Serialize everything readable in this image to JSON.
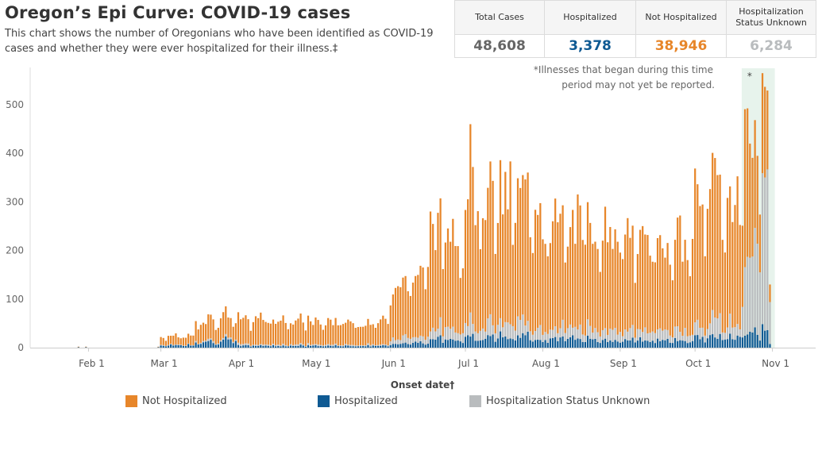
{
  "title": "Oregon’s Epi Curve: COVID-19 cases",
  "subtitle": "This chart shows the number of Oregonians who have been identified as COVID-19 cases and whether they were ever hospitalized for their illness.‡",
  "stats": [
    {
      "label": "Total Cases",
      "value": "48,608",
      "color": "#666666"
    },
    {
      "label": "Hospitalized",
      "value": "3,378",
      "color": "#0f5a93"
    },
    {
      "label": "Not Hospitalized",
      "value": "38,946",
      "color": "#e7862a"
    },
    {
      "label": "Hospitalization Status Unknown",
      "value": "6,284",
      "color": "#b9bcbe"
    }
  ],
  "note_line1": "*Illnesses that began during this time",
  "note_line2": "period may not yet be reported.",
  "star": "*",
  "legend": [
    {
      "label": "Not Hospitalized",
      "color": "#e7862a"
    },
    {
      "label": "Hospitalized",
      "color": "#0f5a93"
    },
    {
      "label": "Hospitalization Status Unknown",
      "color": "#b9bcbe"
    }
  ],
  "chart_data": {
    "type": "bar",
    "stacked": true,
    "xlabel": "Onset date†",
    "ylabel": "",
    "ylim": [
      0,
      580
    ],
    "yticks": [
      0,
      100,
      200,
      300,
      400,
      500
    ],
    "xticks": [
      "Feb 1",
      "Mar 1",
      "Apr 1",
      "May 1",
      "Jun 1",
      "Jul 1",
      "Aug 1",
      "Sep 1",
      "Oct 1",
      "Nov 1"
    ],
    "x_start": "2020-01-22",
    "x_end": "2020-11-01",
    "highlight_period": [
      "2020-10-20",
      "2020-11-01"
    ],
    "series": [
      {
        "name": "Hospitalized",
        "color": "#0f5a93"
      },
      {
        "name": "Not Hospitalized",
        "color": "#e7862a"
      },
      {
        "name": "Hospitalization Status Unknown",
        "color": "#b9bcbe"
      }
    ],
    "totals_by_period": [
      {
        "from": "2020-01-22",
        "to": "2020-02-29",
        "value": 2
      },
      {
        "from": "2020-03-01",
        "to": "2020-03-14",
        "value": 25
      },
      {
        "from": "2020-03-15",
        "to": "2020-03-31",
        "value": 62
      },
      {
        "from": "2020-04-01",
        "to": "2020-04-30",
        "value": 60
      },
      {
        "from": "2020-05-01",
        "to": "2020-05-31",
        "value": 55
      },
      {
        "from": "2020-06-01",
        "to": "2020-06-15",
        "value": 150
      },
      {
        "from": "2020-06-16",
        "to": "2020-06-30",
        "value": 255
      },
      {
        "from": "2020-07-01",
        "to": "2020-07-31",
        "value": 320
      },
      {
        "from": "2020-08-01",
        "to": "2020-08-31",
        "value": 260
      },
      {
        "from": "2020-09-01",
        "to": "2020-09-30",
        "value": 225
      },
      {
        "from": "2020-10-01",
        "to": "2020-10-20",
        "value": 330
      },
      {
        "from": "2020-10-21",
        "to": "2020-10-31",
        "value": 470
      }
    ],
    "peaks": [
      {
        "date": "2020-03-27",
        "value": 85
      },
      {
        "date": "2020-07-03",
        "value": 460
      },
      {
        "date": "2020-10-28",
        "value": 565
      }
    ]
  }
}
